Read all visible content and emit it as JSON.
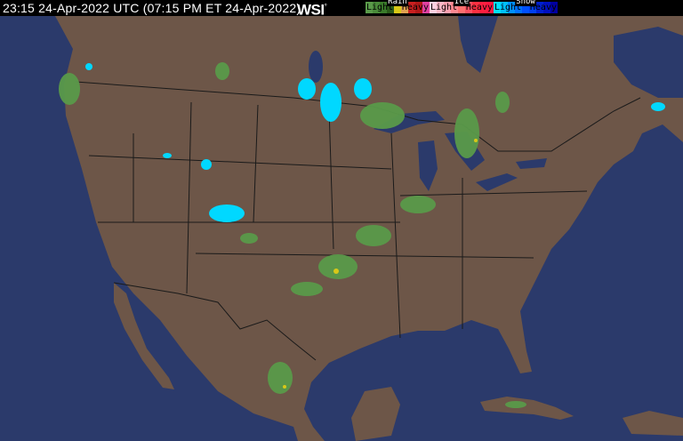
{
  "header": {
    "timestamp": "23:15 24-Apr-2022 UTC  (07:15 PM ET 24-Apr-2022)",
    "logo": "WSI",
    "logo_mark": "°"
  },
  "legend": {
    "rain": {
      "title": "Rain",
      "light": "Light",
      "heavy": "Heavy",
      "colors": [
        "#5a9a4a",
        "#4a8a3a",
        "#3a7a2a",
        "#2a5a1a",
        "#d8c818",
        "#e0a050",
        "#c82020",
        "#b01818",
        "#e040a0"
      ]
    },
    "ice": {
      "title": "Ice",
      "light": "Light",
      "heavy": "Heavy",
      "colors": [
        "#ffd0e0",
        "#ffb8c8",
        "#ffa0b0",
        "#ff8890",
        "#ff7070",
        "#ff5060",
        "#ff3040",
        "#ff2040",
        "#ff1840"
      ]
    },
    "snow": {
      "title": "Snow",
      "light": "Light",
      "heavy": "Heavy",
      "colors": [
        "#00e0ff",
        "#00c0ff",
        "#0090ff",
        "#0070ff",
        "#0050ff",
        "#0040f0",
        "#0020d0",
        "#0010c0",
        "#0000a0"
      ]
    }
  },
  "map": {
    "ocean_color": "#2b3a6b",
    "land_color": "#6d5648",
    "border_color": "#1a1a1a"
  }
}
